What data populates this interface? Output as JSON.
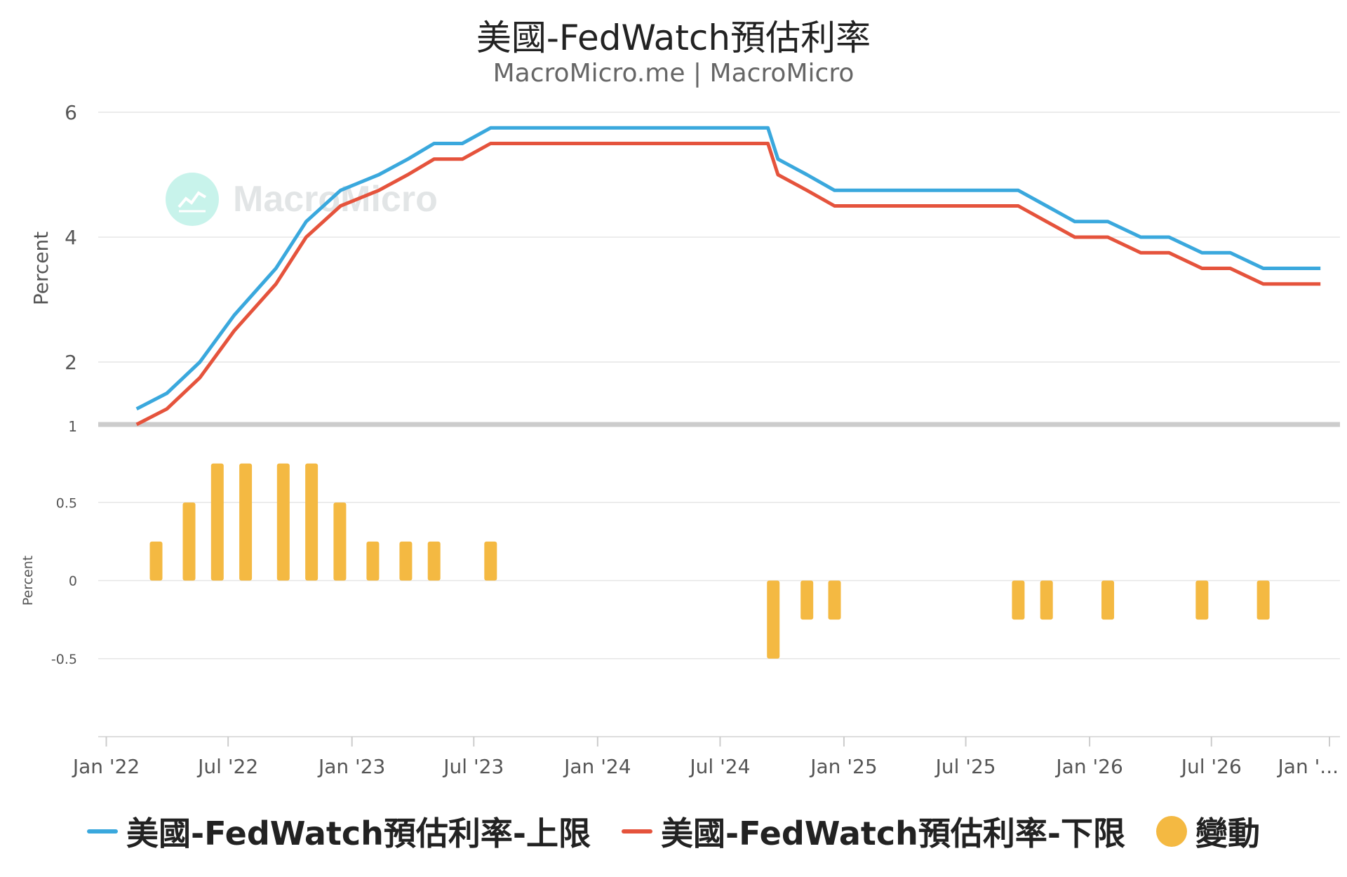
{
  "title": "美國-FedWatch預估利率",
  "subtitle": "MacroMicro.me | MacroMicro",
  "watermark": "MacroMicro",
  "colors": {
    "upper": "#3aa8dd",
    "lower": "#e5533c",
    "change": "#f4b942",
    "grid": "#e6e6e6",
    "separator": "#cccccc"
  },
  "legend": [
    {
      "label": "美國-FedWatch預估利率-上限",
      "color": "#3aa8dd",
      "kind": "line"
    },
    {
      "label": "美國-FedWatch預估利率-下限",
      "color": "#e5533c",
      "kind": "line"
    },
    {
      "label": "變動",
      "color": "#f4b942",
      "kind": "dot"
    }
  ],
  "chart_data": [
    {
      "type": "line",
      "ylabel": "Percent",
      "ylim": [
        1,
        6
      ],
      "yticks": [
        "6",
        "4",
        "2",
        "1"
      ],
      "ytick_values": [
        6,
        4,
        2,
        1
      ],
      "grid": true,
      "x_unit": "date",
      "series": [
        {
          "name": "美國-FedWatch預估利率-上限",
          "points": [
            [
              "2022-02-15",
              1.25
            ],
            [
              "2022-04-01",
              1.5
            ],
            [
              "2022-05-20",
              2.0
            ],
            [
              "2022-07-10",
              2.75
            ],
            [
              "2022-09-10",
              3.5
            ],
            [
              "2022-10-25",
              4.25
            ],
            [
              "2022-12-15",
              4.75
            ],
            [
              "2023-02-10",
              5.0
            ],
            [
              "2023-03-25",
              5.25
            ],
            [
              "2023-05-03",
              5.5
            ],
            [
              "2023-06-14",
              5.5
            ],
            [
              "2023-07-26",
              5.75
            ],
            [
              "2024-09-10",
              5.75
            ],
            [
              "2024-09-25",
              5.25
            ],
            [
              "2024-11-07",
              5.0
            ],
            [
              "2024-12-18",
              4.75
            ],
            [
              "2025-09-17",
              4.75
            ],
            [
              "2025-10-29",
              4.5
            ],
            [
              "2025-12-10",
              4.25
            ],
            [
              "2026-01-28",
              4.25
            ],
            [
              "2026-03-18",
              4.0
            ],
            [
              "2026-04-29",
              4.0
            ],
            [
              "2026-06-17",
              3.75
            ],
            [
              "2026-07-29",
              3.75
            ],
            [
              "2026-09-16",
              3.5
            ],
            [
              "2026-12-10",
              3.5
            ]
          ]
        },
        {
          "name": "美國-FedWatch預估利率-下限",
          "points": [
            [
              "2022-02-15",
              1.0
            ],
            [
              "2022-04-01",
              1.25
            ],
            [
              "2022-05-20",
              1.75
            ],
            [
              "2022-07-10",
              2.5
            ],
            [
              "2022-09-10",
              3.25
            ],
            [
              "2022-10-25",
              4.0
            ],
            [
              "2022-12-15",
              4.5
            ],
            [
              "2023-02-10",
              4.75
            ],
            [
              "2023-03-25",
              5.0
            ],
            [
              "2023-05-03",
              5.25
            ],
            [
              "2023-06-14",
              5.25
            ],
            [
              "2023-07-26",
              5.5
            ],
            [
              "2024-09-10",
              5.5
            ],
            [
              "2024-09-25",
              5.0
            ],
            [
              "2024-11-07",
              4.75
            ],
            [
              "2024-12-18",
              4.5
            ],
            [
              "2025-09-17",
              4.5
            ],
            [
              "2025-10-29",
              4.25
            ],
            [
              "2025-12-10",
              4.0
            ],
            [
              "2026-01-28",
              4.0
            ],
            [
              "2026-03-18",
              3.75
            ],
            [
              "2026-04-29",
              3.75
            ],
            [
              "2026-06-17",
              3.5
            ],
            [
              "2026-07-29",
              3.5
            ],
            [
              "2026-09-16",
              3.25
            ],
            [
              "2026-12-10",
              3.25
            ]
          ]
        }
      ]
    },
    {
      "type": "bar",
      "ylabel": "Percent",
      "ylim": [
        -1,
        1
      ],
      "yticks": [
        "0.5",
        "0",
        "-0.5"
      ],
      "ytick_values": [
        0.5,
        0,
        -0.5
      ],
      "grid": true,
      "x_unit": "date",
      "xticks": [
        "Jan '22",
        "Jul '22",
        "Jan '23",
        "Jul '23",
        "Jan '24",
        "Jul '24",
        "Jan '25",
        "Jul '25",
        "Jan '26",
        "Jul '26",
        "Jan '..."
      ],
      "xtick_dates": [
        "2022-01-01",
        "2022-07-01",
        "2023-01-01",
        "2023-07-01",
        "2024-01-01",
        "2024-07-01",
        "2025-01-01",
        "2025-07-01",
        "2026-01-01",
        "2026-07-01",
        "2027-01-01"
      ],
      "series": [
        {
          "name": "變動",
          "points": [
            [
              "2022-03-16",
              0.25
            ],
            [
              "2022-05-04",
              0.5
            ],
            [
              "2022-06-15",
              0.75
            ],
            [
              "2022-07-27",
              0.75
            ],
            [
              "2022-09-21",
              0.75
            ],
            [
              "2022-11-02",
              0.75
            ],
            [
              "2022-12-14",
              0.5
            ],
            [
              "2023-02-01",
              0.25
            ],
            [
              "2023-03-22",
              0.25
            ],
            [
              "2023-05-03",
              0.25
            ],
            [
              "2023-07-26",
              0.25
            ],
            [
              "2024-09-18",
              -0.5
            ],
            [
              "2024-11-07",
              -0.25
            ],
            [
              "2024-12-18",
              -0.25
            ],
            [
              "2025-09-17",
              -0.25
            ],
            [
              "2025-10-29",
              -0.25
            ],
            [
              "2026-01-28",
              -0.25
            ],
            [
              "2026-06-17",
              -0.25
            ],
            [
              "2026-09-16",
              -0.25
            ]
          ]
        }
      ]
    }
  ]
}
